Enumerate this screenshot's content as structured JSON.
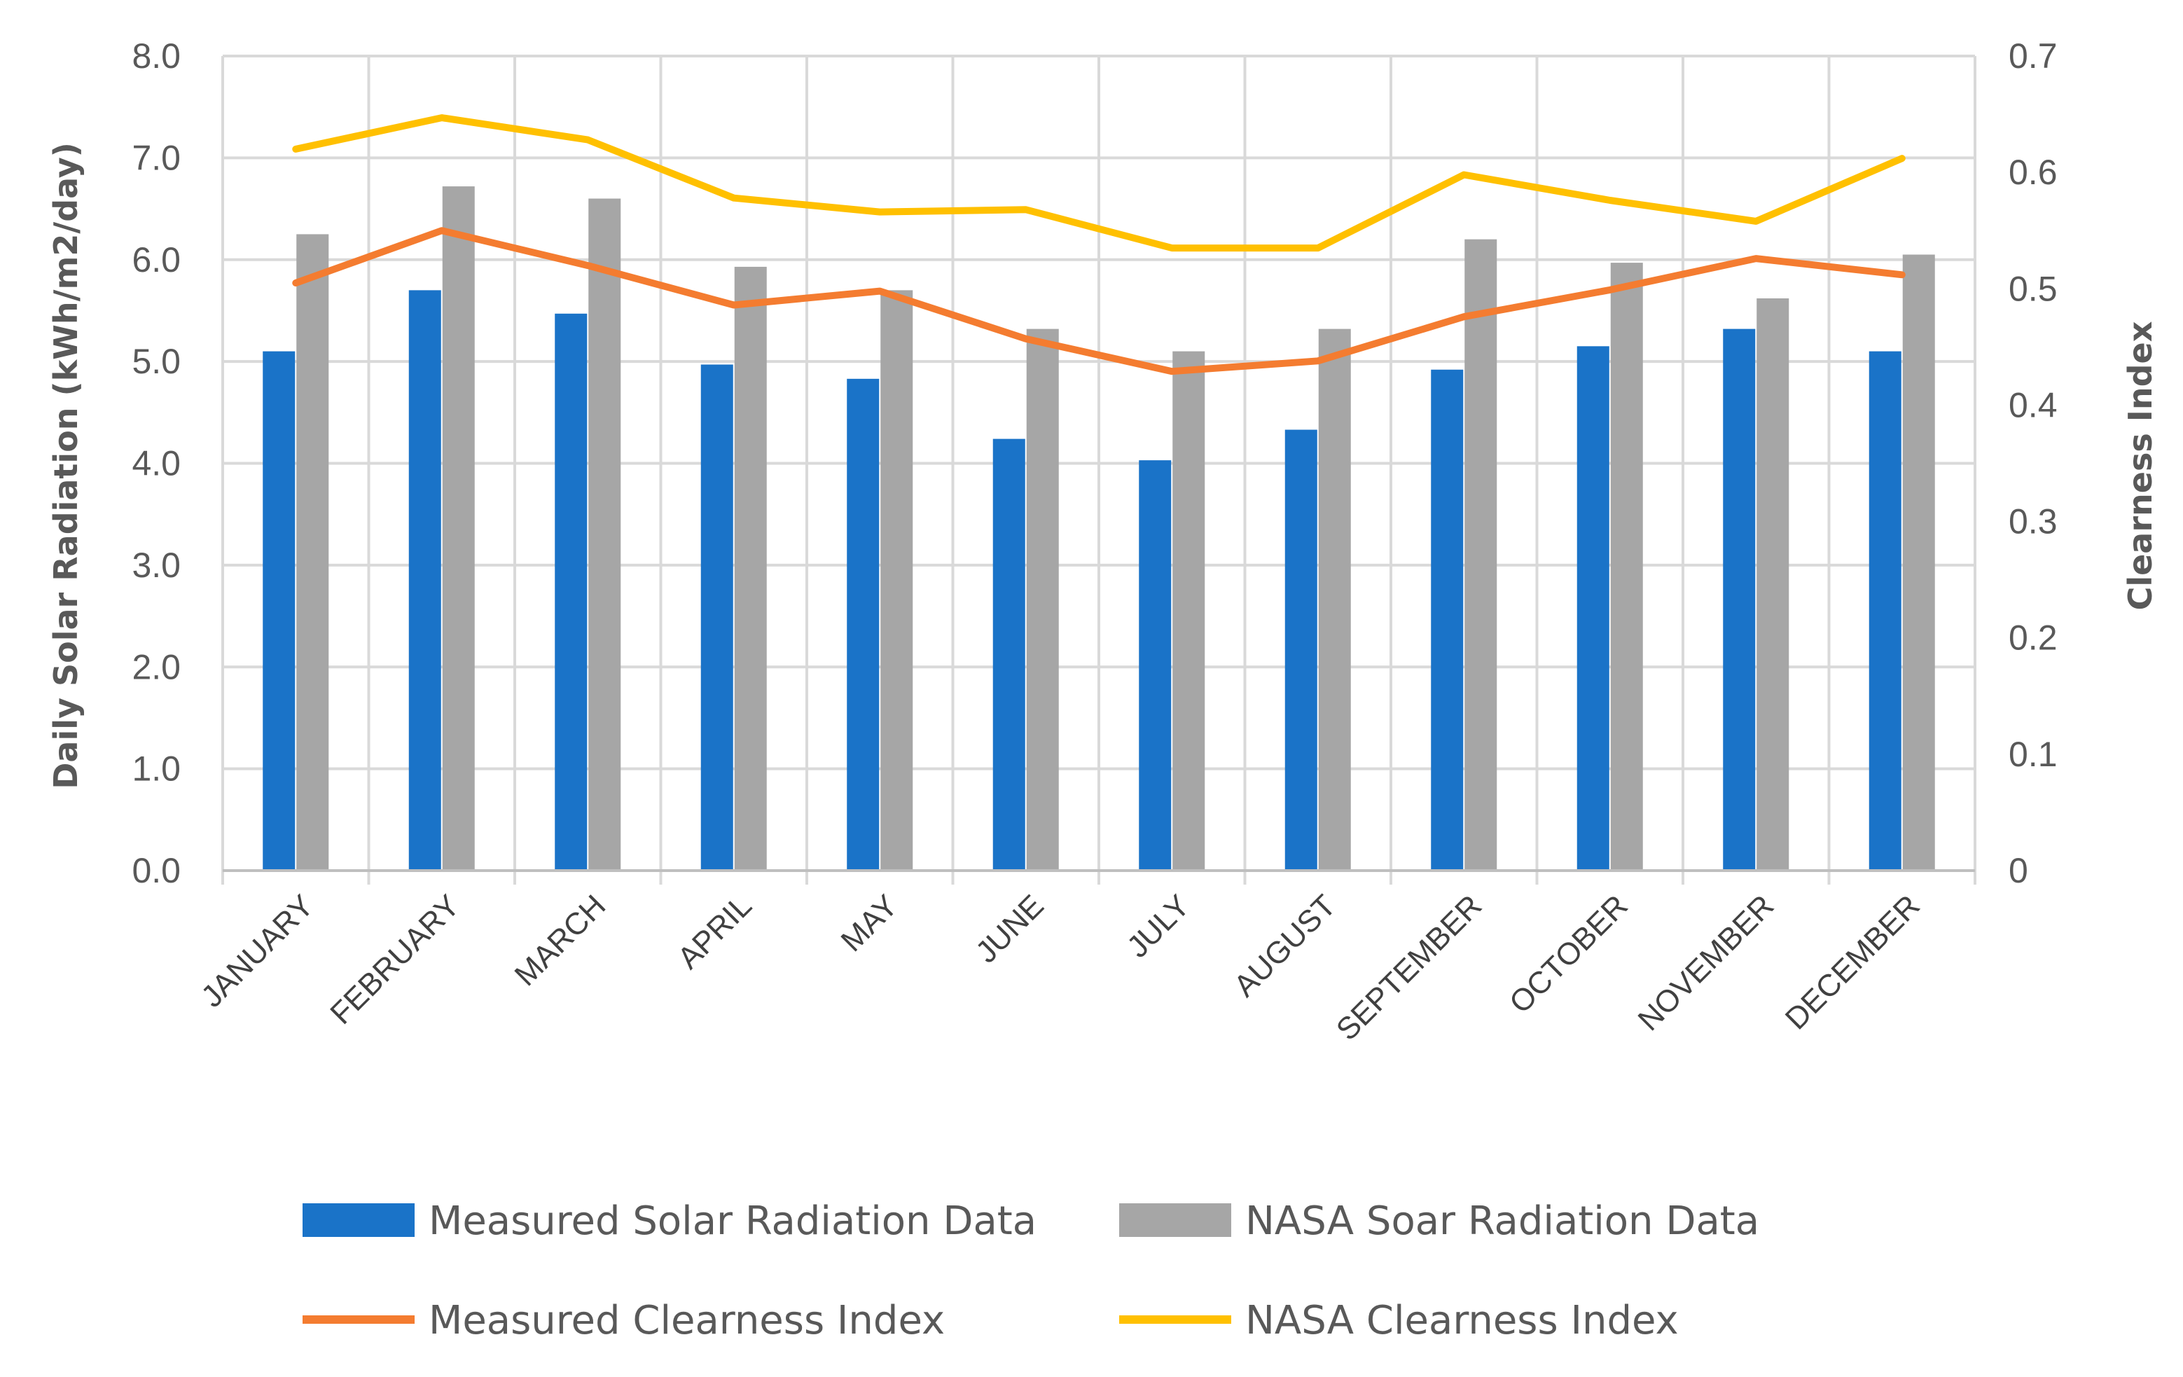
{
  "chart_data": {
    "type": "bar",
    "title": "",
    "categories": [
      "JANUARY",
      "FEBRUARY",
      "MARCH",
      "APRIL",
      "MAY",
      "JUNE",
      "JULY",
      "AUGUST",
      "SEPTEMBER",
      "OCTOBER",
      "NOVEMBER",
      "DECEMBER"
    ],
    "series": [
      {
        "name": "Measured Solar Radiation Data",
        "kind": "bar",
        "axis": "left",
        "color": "#1a73c8",
        "values": [
          5.1,
          5.7,
          5.47,
          4.97,
          4.83,
          4.24,
          4.03,
          4.33,
          4.92,
          5.15,
          5.32,
          5.1
        ]
      },
      {
        "name": "NASA Soar Radiation Data",
        "kind": "bar",
        "axis": "left",
        "color": "#a6a6a6",
        "values": [
          6.25,
          6.72,
          6.6,
          5.93,
          5.7,
          5.32,
          5.1,
          5.32,
          6.2,
          5.97,
          5.62,
          6.05
        ]
      },
      {
        "name": "Measured Clearness Index",
        "kind": "line",
        "axis": "right",
        "color": "#f47c30",
        "values": [
          0.505,
          0.55,
          0.52,
          0.486,
          0.498,
          0.457,
          0.429,
          0.438,
          0.476,
          0.499,
          0.526,
          0.512
        ]
      },
      {
        "name": "NASA Clearness Index",
        "kind": "line",
        "axis": "right",
        "color": "#ffc000",
        "values": [
          0.62,
          0.647,
          0.628,
          0.578,
          0.566,
          0.568,
          0.535,
          0.535,
          0.598,
          0.576,
          0.558,
          0.612
        ]
      }
    ],
    "ylabel": "Daily Solar Radiation (kWh/m2/day)",
    "ylim": [
      0,
      8
    ],
    "yticks": [
      "0.0",
      "1.0",
      "2.0",
      "3.0",
      "4.0",
      "5.0",
      "6.0",
      "7.0",
      "8.0"
    ],
    "y2label": "Clearness Index",
    "y2lim": [
      0,
      0.7
    ],
    "y2ticks": [
      "0",
      "0.1",
      "0.2",
      "0.3",
      "0.4",
      "0.5",
      "0.6",
      "0.7"
    ],
    "grid": true,
    "legend_position": "bottom"
  }
}
